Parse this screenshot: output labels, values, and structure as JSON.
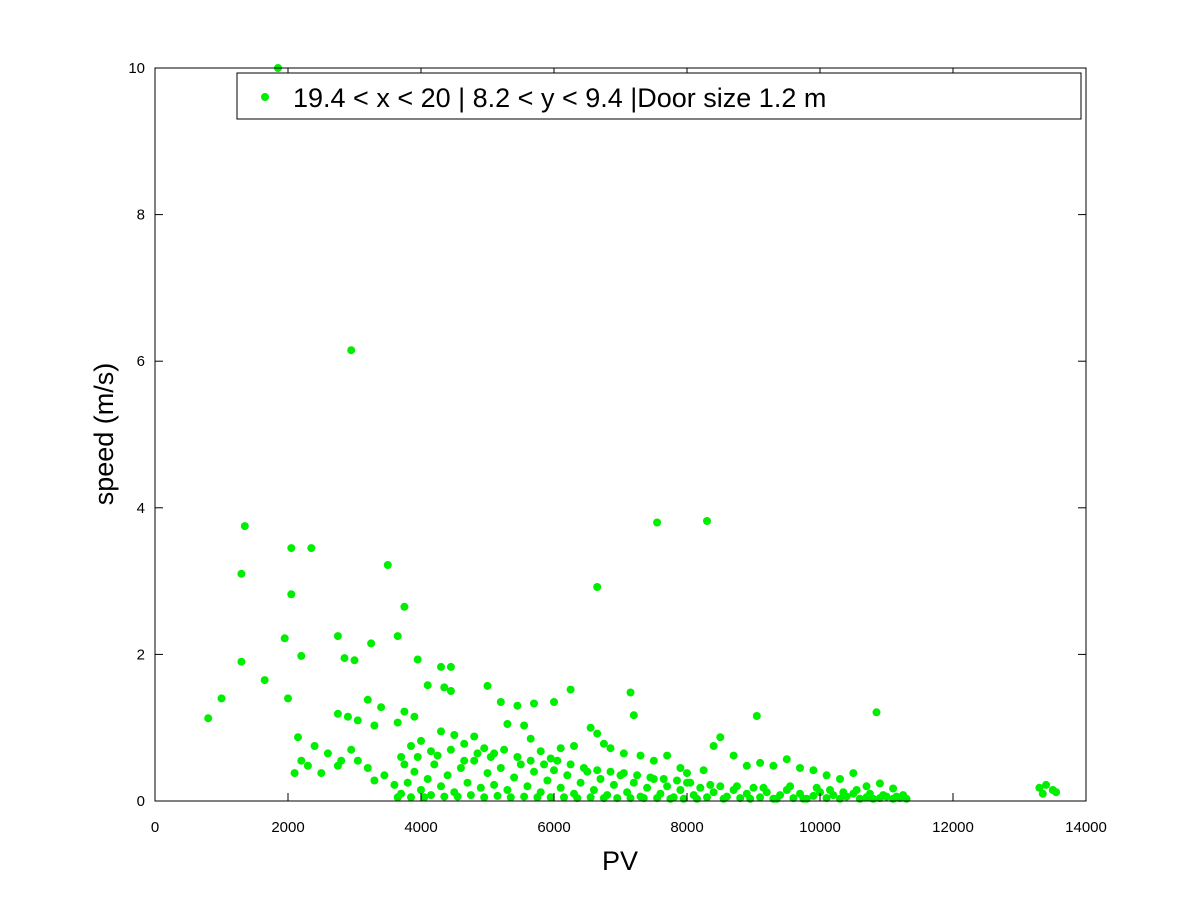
{
  "chart_data": {
    "type": "scatter",
    "title": "",
    "xlabel": "PV",
    "ylabel": "speed (m/s)",
    "xlim": [
      0,
      14000
    ],
    "ylim": [
      0,
      10
    ],
    "xticks": [
      "0",
      "2000",
      "4000",
      "6000",
      "8000",
      "10000",
      "12000",
      "14000"
    ],
    "yticks": [
      "0",
      "2",
      "4",
      "6",
      "8",
      "10"
    ],
    "grid": false,
    "legend_position": "top",
    "series": [
      {
        "name": "19.4 < x < 20 | 8.2 < y < 9.4 |Door size 1.2 m",
        "color": "#00ee00",
        "marker": "circle",
        "points": [
          [
            1850,
            10.0
          ],
          [
            2950,
            6.15
          ],
          [
            1350,
            3.75
          ],
          [
            1300,
            3.1
          ],
          [
            2050,
            3.45
          ],
          [
            2350,
            3.45
          ],
          [
            3500,
            3.22
          ],
          [
            2050,
            2.82
          ],
          [
            3750,
            2.65
          ],
          [
            7550,
            3.8
          ],
          [
            8300,
            3.82
          ],
          [
            6650,
            2.92
          ],
          [
            1950,
            2.22
          ],
          [
            2750,
            2.25
          ],
          [
            3650,
            2.25
          ],
          [
            2200,
            1.98
          ],
          [
            1300,
            1.9
          ],
          [
            2850,
            1.95
          ],
          [
            3000,
            1.92
          ],
          [
            3250,
            2.15
          ],
          [
            3950,
            1.93
          ],
          [
            1650,
            1.65
          ],
          [
            1000,
            1.4
          ],
          [
            800,
            1.13
          ],
          [
            2000,
            1.4
          ],
          [
            4100,
            1.58
          ],
          [
            4300,
            1.83
          ],
          [
            4450,
            1.83
          ],
          [
            4450,
            1.5
          ],
          [
            4350,
            1.55
          ],
          [
            5000,
            1.57
          ],
          [
            6250,
            1.52
          ],
          [
            7150,
            1.48
          ],
          [
            7200,
            1.17
          ],
          [
            9050,
            1.16
          ],
          [
            10850,
            1.21
          ],
          [
            3200,
            1.38
          ],
          [
            3400,
            1.28
          ],
          [
            3750,
            1.22
          ],
          [
            3900,
            1.15
          ],
          [
            5200,
            1.35
          ],
          [
            5450,
            1.3
          ],
          [
            5700,
            1.33
          ],
          [
            6000,
            1.35
          ],
          [
            2750,
            1.19
          ],
          [
            2900,
            1.15
          ],
          [
            3050,
            1.1
          ],
          [
            3300,
            1.03
          ],
          [
            3650,
            1.07
          ],
          [
            2150,
            0.87
          ],
          [
            2400,
            0.75
          ],
          [
            2600,
            0.65
          ],
          [
            2800,
            0.55
          ],
          [
            2200,
            0.55
          ],
          [
            2100,
            0.38
          ],
          [
            2300,
            0.48
          ],
          [
            2500,
            0.38
          ],
          [
            2750,
            0.48
          ],
          [
            2950,
            0.7
          ],
          [
            3050,
            0.55
          ],
          [
            3200,
            0.45
          ],
          [
            3300,
            0.28
          ],
          [
            3450,
            0.35
          ],
          [
            3600,
            0.22
          ],
          [
            3700,
            0.6
          ],
          [
            3850,
            0.75
          ],
          [
            4000,
            0.82
          ],
          [
            4150,
            0.68
          ],
          [
            4300,
            0.95
          ],
          [
            4500,
            0.9
          ],
          [
            4650,
            0.78
          ],
          [
            4800,
            0.88
          ],
          [
            4950,
            0.72
          ],
          [
            5100,
            0.65
          ],
          [
            5300,
            1.05
          ],
          [
            5550,
            1.03
          ],
          [
            5650,
            0.85
          ],
          [
            5800,
            0.68
          ],
          [
            5950,
            0.58
          ],
          [
            6100,
            0.72
          ],
          [
            6300,
            0.75
          ],
          [
            6550,
            1.0
          ],
          [
            6650,
            0.92
          ],
          [
            6750,
            0.78
          ],
          [
            6850,
            0.72
          ],
          [
            7050,
            0.65
          ],
          [
            7300,
            0.62
          ],
          [
            7500,
            0.55
          ],
          [
            7700,
            0.62
          ],
          [
            7900,
            0.45
          ],
          [
            8000,
            0.38
          ],
          [
            8250,
            0.42
          ],
          [
            8400,
            0.75
          ],
          [
            8500,
            0.87
          ],
          [
            8700,
            0.62
          ],
          [
            8900,
            0.48
          ],
          [
            9100,
            0.52
          ],
          [
            9300,
            0.48
          ],
          [
            9500,
            0.57
          ],
          [
            9700,
            0.45
          ],
          [
            9900,
            0.42
          ],
          [
            10100,
            0.35
          ],
          [
            10300,
            0.3
          ],
          [
            10500,
            0.38
          ],
          [
            10700,
            0.2
          ],
          [
            10900,
            0.24
          ],
          [
            11100,
            0.17
          ],
          [
            11250,
            0.08
          ],
          [
            13300,
            0.18
          ],
          [
            13400,
            0.22
          ],
          [
            13500,
            0.15
          ],
          [
            13550,
            0.12
          ],
          [
            13350,
            0.1
          ],
          [
            3700,
            0.1
          ],
          [
            3800,
            0.25
          ],
          [
            3900,
            0.4
          ],
          [
            4000,
            0.15
          ],
          [
            4100,
            0.3
          ],
          [
            4200,
            0.5
          ],
          [
            4300,
            0.2
          ],
          [
            4400,
            0.35
          ],
          [
            4500,
            0.12
          ],
          [
            4600,
            0.45
          ],
          [
            4700,
            0.25
          ],
          [
            4800,
            0.55
          ],
          [
            4900,
            0.18
          ],
          [
            5000,
            0.38
          ],
          [
            5100,
            0.22
          ],
          [
            5200,
            0.45
          ],
          [
            5300,
            0.15
          ],
          [
            5400,
            0.32
          ],
          [
            5500,
            0.5
          ],
          [
            5600,
            0.2
          ],
          [
            5700,
            0.4
          ],
          [
            5800,
            0.12
          ],
          [
            5900,
            0.28
          ],
          [
            6000,
            0.42
          ],
          [
            6100,
            0.18
          ],
          [
            6200,
            0.35
          ],
          [
            6300,
            0.1
          ],
          [
            6400,
            0.25
          ],
          [
            6500,
            0.4
          ],
          [
            6600,
            0.15
          ],
          [
            6700,
            0.3
          ],
          [
            6800,
            0.08
          ],
          [
            6900,
            0.22
          ],
          [
            7000,
            0.35
          ],
          [
            7100,
            0.12
          ],
          [
            7200,
            0.25
          ],
          [
            7300,
            0.06
          ],
          [
            7400,
            0.18
          ],
          [
            7500,
            0.3
          ],
          [
            7600,
            0.1
          ],
          [
            7700,
            0.2
          ],
          [
            7800,
            0.05
          ],
          [
            7900,
            0.15
          ],
          [
            8000,
            0.25
          ],
          [
            8100,
            0.08
          ],
          [
            8200,
            0.18
          ],
          [
            8300,
            0.05
          ],
          [
            8400,
            0.12
          ],
          [
            8500,
            0.2
          ],
          [
            8600,
            0.06
          ],
          [
            8700,
            0.15
          ],
          [
            8800,
            0.04
          ],
          [
            8900,
            0.1
          ],
          [
            9000,
            0.18
          ],
          [
            9100,
            0.05
          ],
          [
            9200,
            0.12
          ],
          [
            9300,
            0.03
          ],
          [
            9400,
            0.08
          ],
          [
            9500,
            0.15
          ],
          [
            9600,
            0.04
          ],
          [
            9700,
            0.1
          ],
          [
            9800,
            0.03
          ],
          [
            9900,
            0.07
          ],
          [
            10000,
            0.12
          ],
          [
            10100,
            0.04
          ],
          [
            10200,
            0.08
          ],
          [
            10300,
            0.03
          ],
          [
            10400,
            0.06
          ],
          [
            10500,
            0.1
          ],
          [
            10600,
            0.03
          ],
          [
            10700,
            0.05
          ],
          [
            10800,
            0.03
          ],
          [
            10900,
            0.04
          ],
          [
            11000,
            0.06
          ],
          [
            11100,
            0.03
          ],
          [
            11200,
            0.04
          ],
          [
            11300,
            0.03
          ],
          [
            3650,
            0.05
          ],
          [
            3750,
            0.5
          ],
          [
            3850,
            0.05
          ],
          [
            3950,
            0.6
          ],
          [
            4050,
            0.05
          ],
          [
            4150,
            0.08
          ],
          [
            4250,
            0.62
          ],
          [
            4350,
            0.06
          ],
          [
            4450,
            0.7
          ],
          [
            4550,
            0.06
          ],
          [
            4650,
            0.55
          ],
          [
            4750,
            0.08
          ],
          [
            4850,
            0.65
          ],
          [
            4950,
            0.05
          ],
          [
            5050,
            0.6
          ],
          [
            5150,
            0.07
          ],
          [
            5250,
            0.7
          ],
          [
            5350,
            0.05
          ],
          [
            5450,
            0.6
          ],
          [
            5550,
            0.06
          ],
          [
            5650,
            0.55
          ],
          [
            5750,
            0.05
          ],
          [
            5850,
            0.5
          ],
          [
            5950,
            0.05
          ],
          [
            6050,
            0.55
          ],
          [
            6150,
            0.05
          ],
          [
            6250,
            0.5
          ],
          [
            6350,
            0.04
          ],
          [
            6450,
            0.45
          ],
          [
            6550,
            0.05
          ],
          [
            6650,
            0.42
          ],
          [
            6750,
            0.04
          ],
          [
            6850,
            0.4
          ],
          [
            6950,
            0.04
          ],
          [
            7050,
            0.38
          ],
          [
            7150,
            0.04
          ],
          [
            7250,
            0.35
          ],
          [
            7350,
            0.04
          ],
          [
            7450,
            0.32
          ],
          [
            7550,
            0.04
          ],
          [
            7650,
            0.3
          ],
          [
            7750,
            0.03
          ],
          [
            7850,
            0.28
          ],
          [
            7950,
            0.03
          ],
          [
            8050,
            0.25
          ],
          [
            8150,
            0.03
          ],
          [
            8350,
            0.22
          ],
          [
            8550,
            0.03
          ],
          [
            8750,
            0.2
          ],
          [
            8950,
            0.03
          ],
          [
            9150,
            0.18
          ],
          [
            9350,
            0.03
          ],
          [
            9550,
            0.2
          ],
          [
            9750,
            0.03
          ],
          [
            9950,
            0.18
          ],
          [
            10150,
            0.15
          ],
          [
            10350,
            0.12
          ],
          [
            10550,
            0.15
          ],
          [
            10750,
            0.1
          ],
          [
            10950,
            0.08
          ],
          [
            11150,
            0.06
          ]
        ]
      }
    ]
  }
}
